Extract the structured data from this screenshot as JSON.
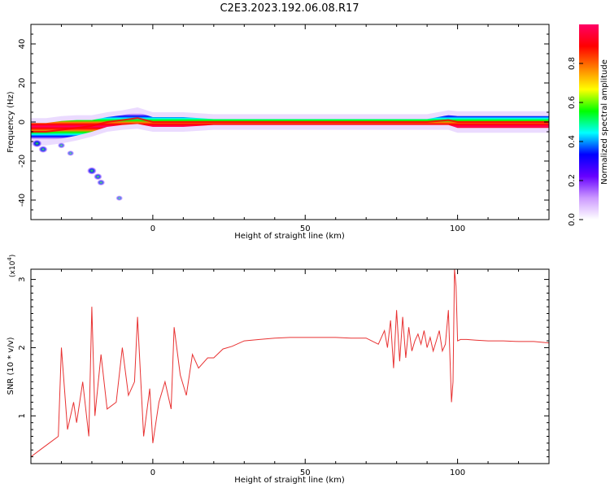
{
  "page": {
    "title": "C2E3.2023.192.06.08.R17"
  },
  "chart_data": [
    {
      "type": "heatmap",
      "xlabel": "Height of straight line (km)",
      "ylabel": "Frequency (Hz)",
      "xlim": [
        -40,
        130
      ],
      "ylim": [
        -50,
        50
      ],
      "x_ticks": [
        0,
        50,
        100
      ],
      "y_ticks": [
        -40,
        -20,
        0,
        20,
        40
      ],
      "colorbar": {
        "label": "Normalized spectral amplitude",
        "range": [
          0.0,
          1.0
        ],
        "ticks": [
          0.0,
          0.2,
          0.4,
          0.6,
          0.8
        ],
        "tick_labels": [
          "0.0",
          "0.2",
          "0.4",
          "0.6",
          "0.8"
        ],
        "colors": [
          "#ffffff",
          "#cc99ff",
          "#6600ff",
          "#0000ff",
          "#00ffff",
          "#00ff00",
          "#ffff00",
          "#ff7f00",
          "#ff0000",
          "#ff0066"
        ]
      },
      "bands": [
        {
          "x": -40,
          "center": -5,
          "width": 9
        },
        {
          "x": -35,
          "center": -5,
          "width": 9
        },
        {
          "x": -30,
          "center": -4,
          "width": 9
        },
        {
          "x": -25,
          "center": -3,
          "width": 8
        },
        {
          "x": -20,
          "center": -2,
          "width": 6
        },
        {
          "x": -15,
          "center": 0,
          "width": 5
        },
        {
          "x": -10,
          "center": 1,
          "width": 5
        },
        {
          "x": -5,
          "center": 2,
          "width": 6
        },
        {
          "x": 0,
          "center": 0,
          "width": 5
        },
        {
          "x": 10,
          "center": 0,
          "width": 5
        },
        {
          "x": 20,
          "center": 0,
          "width": 3
        },
        {
          "x": 90,
          "center": 0,
          "width": 3
        },
        {
          "x": 97,
          "center": 1,
          "width": 5
        },
        {
          "x": 100,
          "center": 0,
          "width": 6
        },
        {
          "x": 130,
          "center": 0,
          "width": 6
        }
      ],
      "blobs": [
        {
          "x": -38,
          "y": -11,
          "level": 0.4
        },
        {
          "x": -36,
          "y": -14,
          "level": 0.3
        },
        {
          "x": -20,
          "y": -25,
          "level": 0.35
        },
        {
          "x": -18,
          "y": -28,
          "level": 0.25
        },
        {
          "x": -17,
          "y": -31,
          "level": 0.2
        },
        {
          "x": -30,
          "y": -12,
          "level": 0.15
        },
        {
          "x": -27,
          "y": -16,
          "level": 0.12
        },
        {
          "x": -11,
          "y": -39,
          "level": 0.1
        }
      ]
    },
    {
      "type": "line",
      "xlabel": "Height of straight line (km)",
      "ylabel": "SNR (10 * v/v)",
      "y_multiplier": "(x10",
      "y_multiplier_exp": "4",
      "y_multiplier_close": ")",
      "xlim": [
        -40,
        130
      ],
      "ylim": [
        0.3,
        3.15
      ],
      "x_ticks": [
        0,
        50,
        100
      ],
      "y_ticks": [
        1,
        2,
        3
      ],
      "line_color": "#e83232",
      "series": [
        {
          "x": [
            -40,
            -37,
            -34,
            -31,
            -30,
            -28,
            -26,
            -25,
            -23,
            -21,
            -20,
            -19,
            -17,
            -15,
            -12,
            -10,
            -8,
            -6,
            -5,
            -3,
            -1,
            0,
            2,
            4,
            6,
            7,
            9,
            11,
            13,
            15,
            18,
            20,
            23,
            26,
            30,
            35,
            40,
            45,
            50,
            55,
            60,
            65,
            70,
            74,
            76,
            77,
            78,
            79,
            80,
            81,
            82,
            83,
            84,
            85,
            86,
            87,
            88,
            89,
            90,
            91,
            92,
            93,
            94,
            95,
            96,
            97,
            98,
            98.5,
            99,
            99.5,
            100,
            101,
            103,
            106,
            110,
            115,
            120,
            125,
            130
          ],
          "y": [
            0.4,
            0.5,
            0.6,
            0.7,
            2.0,
            0.8,
            1.2,
            0.9,
            1.5,
            0.7,
            2.6,
            1.0,
            1.9,
            1.1,
            1.2,
            2.0,
            1.3,
            1.5,
            2.45,
            0.7,
            1.4,
            0.6,
            1.2,
            1.5,
            1.1,
            2.3,
            1.6,
            1.3,
            1.9,
            1.7,
            1.85,
            1.85,
            1.98,
            2.02,
            2.1,
            2.12,
            2.14,
            2.15,
            2.15,
            2.15,
            2.15,
            2.14,
            2.14,
            2.05,
            2.25,
            2.0,
            2.4,
            1.7,
            2.55,
            1.8,
            2.45,
            1.85,
            2.3,
            1.95,
            2.1,
            2.2,
            2.05,
            2.25,
            2.0,
            2.15,
            1.95,
            2.1,
            2.25,
            1.95,
            2.05,
            2.55,
            1.2,
            1.5,
            3.15,
            2.9,
            2.1,
            2.12,
            2.12,
            2.11,
            2.1,
            2.1,
            2.09,
            2.09,
            2.07
          ]
        }
      ]
    }
  ]
}
